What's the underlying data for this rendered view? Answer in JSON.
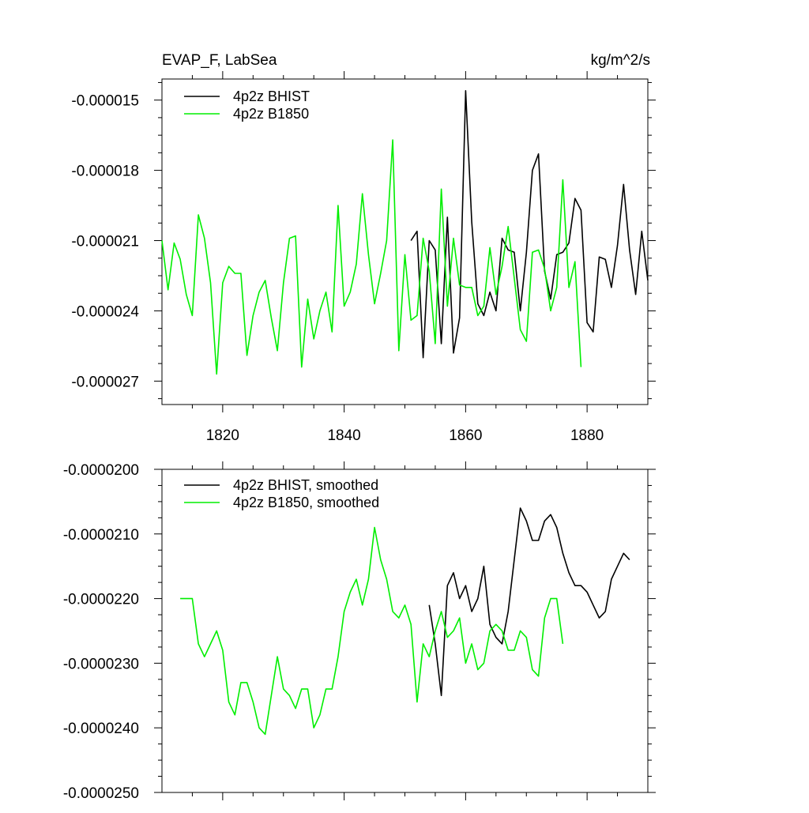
{
  "chart_data": [
    {
      "type": "line",
      "title_left": "EVAP_F, LabSea",
      "title_right": "kg/m^2/s",
      "xlabel": "",
      "ylabel": "",
      "xlim": [
        1810,
        1890
      ],
      "ylim": [
        -2.8e-05,
        -1.41e-05
      ],
      "x_ticks": [
        1820,
        1840,
        1860,
        1880
      ],
      "x_tick_labels": [
        "1820",
        "1840",
        "1860",
        "1880"
      ],
      "y_ticks": [
        -1.5e-05,
        -1.8e-05,
        -2.1e-05,
        -2.4e-05,
        -2.7e-05
      ],
      "y_tick_labels": [
        "-0.000015",
        "-0.000018",
        "-0.000021",
        "-0.000024",
        "-0.000027"
      ],
      "legend_position": "top-left",
      "series": [
        {
          "name": "4p2z BHIST",
          "color": "#000000",
          "x_start": 1851,
          "values": [
            -2.1e-05,
            -2.06e-05,
            -2.6e-05,
            -2.1e-05,
            -2.14e-05,
            -2.54e-05,
            -2e-05,
            -2.58e-05,
            -2.43e-05,
            -1.46e-05,
            -2.02e-05,
            -2.37e-05,
            -2.42e-05,
            -2.32e-05,
            -2.4e-05,
            -2.09e-05,
            -2.14e-05,
            -2.15e-05,
            -2.4e-05,
            -2.15e-05,
            -1.8e-05,
            -1.73e-05,
            -2.23e-05,
            -2.35e-05,
            -2.16e-05,
            -2.15e-05,
            -2.11e-05,
            -1.92e-05,
            -1.97e-05,
            -2.45e-05,
            -2.49e-05,
            -2.17e-05,
            -2.18e-05,
            -2.3e-05,
            -2.12e-05,
            -1.86e-05,
            -2.14e-05,
            -2.33e-05,
            -2.06e-05,
            -2.27e-05
          ]
        },
        {
          "name": "4p2z B1850",
          "color": "#00ee00",
          "x_start": 1810,
          "values": [
            -2.1e-05,
            -2.31e-05,
            -2.11e-05,
            -2.18e-05,
            -2.33e-05,
            -2.42e-05,
            -1.99e-05,
            -2.09e-05,
            -2.28e-05,
            -2.67e-05,
            -2.28e-05,
            -2.21e-05,
            -2.24e-05,
            -2.24e-05,
            -2.59e-05,
            -2.42e-05,
            -2.32e-05,
            -2.27e-05,
            -2.43e-05,
            -2.57e-05,
            -2.28e-05,
            -2.09e-05,
            -2.08e-05,
            -2.64e-05,
            -2.35e-05,
            -2.52e-05,
            -2.4e-05,
            -2.32e-05,
            -2.49e-05,
            -1.95e-05,
            -2.38e-05,
            -2.32e-05,
            -2.2e-05,
            -1.9e-05,
            -2.16e-05,
            -2.37e-05,
            -2.24e-05,
            -2.1e-05,
            -1.67e-05,
            -2.57e-05,
            -2.16e-05,
            -2.44e-05,
            -2.42e-05,
            -2.09e-05,
            -2.23e-05,
            -2.54e-05,
            -1.88e-05,
            -2.38e-05,
            -2.09e-05,
            -2.29e-05,
            -2.3e-05,
            -2.3e-05,
            -2.42e-05,
            -2.38e-05,
            -2.13e-05,
            -2.33e-05,
            -2.21e-05,
            -2.04e-05,
            -2.26e-05,
            -2.48e-05,
            -2.53e-05,
            -2.15e-05,
            -2.14e-05,
            -2.22e-05,
            -2.4e-05,
            -2.3e-05,
            -1.84e-05,
            -2.3e-05,
            -2.19e-05,
            -2.64e-05
          ]
        }
      ]
    },
    {
      "type": "line",
      "xlabel": "",
      "ylabel": "",
      "xlim": [
        1810,
        1890
      ],
      "ylim": [
        -2.5e-05,
        -2e-05
      ],
      "x_ticks": [
        1820,
        1840,
        1860,
        1880
      ],
      "y_ticks": [
        -2e-05,
        -2.1e-05,
        -2.2e-05,
        -2.3e-05,
        -2.4e-05,
        -2.5e-05
      ],
      "y_tick_labels": [
        "-0.0000200",
        "-0.0000210",
        "-0.0000220",
        "-0.0000230",
        "-0.0000240",
        "-0.0000250"
      ],
      "legend_position": "top-left",
      "series": [
        {
          "name": "4p2z BHIST, smoothed",
          "color": "#000000",
          "x_start": 1854,
          "values": [
            -2.21e-05,
            -2.27e-05,
            -2.35e-05,
            -2.18e-05,
            -2.16e-05,
            -2.2e-05,
            -2.18e-05,
            -2.22e-05,
            -2.2e-05,
            -2.15e-05,
            -2.24e-05,
            -2.26e-05,
            -2.27e-05,
            -2.22e-05,
            -2.14e-05,
            -2.06e-05,
            -2.08e-05,
            -2.11e-05,
            -2.11e-05,
            -2.08e-05,
            -2.07e-05,
            -2.09e-05,
            -2.13e-05,
            -2.16e-05,
            -2.18e-05,
            -2.18e-05,
            -2.19e-05,
            -2.21e-05,
            -2.23e-05,
            -2.22e-05,
            -2.17e-05,
            -2.15e-05,
            -2.13e-05,
            -2.14e-05
          ]
        },
        {
          "name": "4p2z B1850, smoothed",
          "color": "#00ee00",
          "x_start": 1813,
          "values": [
            -2.2e-05,
            -2.2e-05,
            -2.2e-05,
            -2.27e-05,
            -2.29e-05,
            -2.27e-05,
            -2.25e-05,
            -2.28e-05,
            -2.36e-05,
            -2.38e-05,
            -2.33e-05,
            -2.33e-05,
            -2.36e-05,
            -2.4e-05,
            -2.41e-05,
            -2.35e-05,
            -2.29e-05,
            -2.34e-05,
            -2.35e-05,
            -2.37e-05,
            -2.34e-05,
            -2.34e-05,
            -2.4e-05,
            -2.38e-05,
            -2.34e-05,
            -2.34e-05,
            -2.29e-05,
            -2.22e-05,
            -2.19e-05,
            -2.17e-05,
            -2.21e-05,
            -2.17e-05,
            -2.09e-05,
            -2.14e-05,
            -2.17e-05,
            -2.22e-05,
            -2.23e-05,
            -2.21e-05,
            -2.24e-05,
            -2.36e-05,
            -2.27e-05,
            -2.29e-05,
            -2.25e-05,
            -2.22e-05,
            -2.26e-05,
            -2.25e-05,
            -2.23e-05,
            -2.3e-05,
            -2.27e-05,
            -2.31e-05,
            -2.3e-05,
            -2.25e-05,
            -2.24e-05,
            -2.25e-05,
            -2.28e-05,
            -2.28e-05,
            -2.25e-05,
            -2.26e-05,
            -2.31e-05,
            -2.32e-05,
            -2.23e-05,
            -2.2e-05,
            -2.2e-05,
            -2.27e-05
          ]
        }
      ]
    }
  ]
}
